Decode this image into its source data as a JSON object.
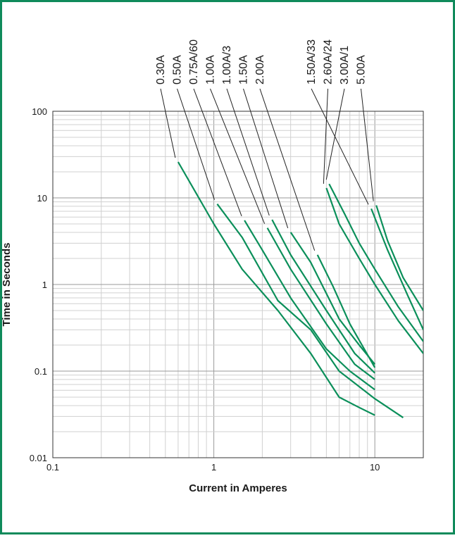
{
  "frame_color": "#0f8a5b",
  "curve_color": "#0b8f5a",
  "chart_data": {
    "type": "line",
    "title": "",
    "xlabel": "Current in Amperes",
    "ylabel": "Time in Seconds",
    "xscale": "log",
    "yscale": "log",
    "xlim": [
      0.1,
      20
    ],
    "ylim": [
      0.01,
      100
    ],
    "x_ticks": [
      {
        "value": 0.1,
        "label": "0.1"
      },
      {
        "value": 1,
        "label": "1"
      },
      {
        "value": 10,
        "label": "10"
      }
    ],
    "y_ticks": [
      {
        "value": 100,
        "label": "100"
      },
      {
        "value": 10,
        "label": "10"
      },
      {
        "value": 1,
        "label": "1"
      },
      {
        "value": 0.1,
        "label": "0.1"
      },
      {
        "value": 0.01,
        "label": "0.01"
      }
    ],
    "grid": true,
    "series": [
      {
        "name": "0.30A",
        "x": [
          0.6,
          1.0,
          1.5,
          2.5,
          4.0,
          6.0,
          8.0,
          10.0
        ],
        "y": [
          26,
          5.0,
          1.5,
          0.5,
          0.16,
          0.05,
          0.038,
          0.031
        ]
      },
      {
        "name": "0.50A",
        "x": [
          1.05,
          1.5,
          2.5,
          4.0,
          6.0,
          10.0,
          15.0
        ],
        "y": [
          8.5,
          3.5,
          0.65,
          0.3,
          0.1,
          0.048,
          0.029
        ]
      },
      {
        "name": "0.75A/60",
        "x": [
          1.55,
          2.0,
          3.0,
          5.0,
          7.0,
          10.0
        ],
        "y": [
          5.5,
          2.5,
          0.7,
          0.18,
          0.1,
          0.061
        ]
      },
      {
        "name": "1.00A",
        "x": [
          2.15,
          3.0,
          5.0,
          7.5,
          10.0
        ],
        "y": [
          4.5,
          1.5,
          0.35,
          0.12,
          0.08
        ]
      },
      {
        "name": "1.00A/3",
        "x": [
          2.3,
          3.0,
          5.0,
          7.5,
          10.0
        ],
        "y": [
          5.6,
          2.2,
          0.5,
          0.16,
          0.095
        ]
      },
      {
        "name": "1.50A",
        "x": [
          3.0,
          4.0,
          6.0,
          8.0,
          10.0
        ],
        "y": [
          4.0,
          1.8,
          0.4,
          0.2,
          0.12
        ]
      },
      {
        "name": "2.00A",
        "x": [
          4.4,
          5.5,
          7.0,
          10.0
        ],
        "y": [
          2.2,
          0.95,
          0.35,
          0.11
        ]
      },
      {
        "name": "1.50A/33",
        "x": [
          9.5,
          12.0,
          16.0,
          20.0
        ],
        "y": [
          7.5,
          2.5,
          0.75,
          0.3
        ]
      },
      {
        "name": "2.60A/24",
        "x": [
          5.0,
          6.0,
          8.0,
          10.0,
          14.0,
          20.0
        ],
        "y": [
          13,
          5.0,
          2.0,
          1.0,
          0.38,
          0.16
        ]
      },
      {
        "name": "3.00A/1",
        "x": [
          5.2,
          6.5,
          8.0,
          10.0,
          14.0,
          20.0
        ],
        "y": [
          14.5,
          6.5,
          3.0,
          1.5,
          0.55,
          0.22
        ]
      },
      {
        "name": "5.00A",
        "x": [
          10.2,
          12.0,
          15.0,
          20.0
        ],
        "y": [
          8.2,
          3.2,
          1.2,
          0.5
        ]
      }
    ],
    "label_order_left": [
      "0.30A",
      "0.50A",
      "0.75A/60",
      "1.00A",
      "1.00A/3",
      "1.50A",
      "2.00A"
    ],
    "label_order_right": [
      "1.50A/33",
      "2.60A/24",
      "3.00A/1",
      "5.00A"
    ]
  }
}
